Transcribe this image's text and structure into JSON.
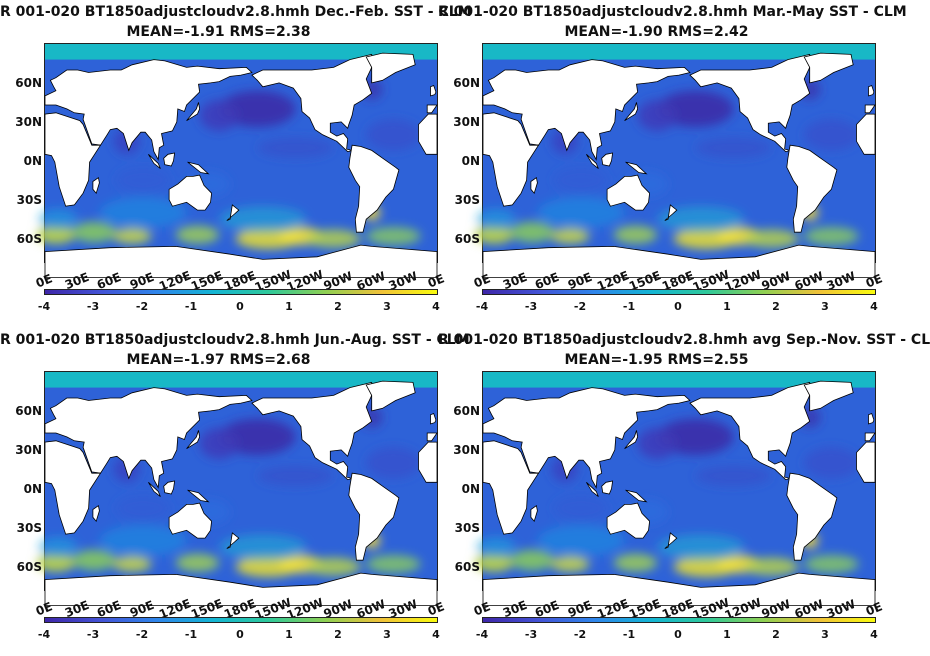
{
  "panels": [
    {
      "title_line1": "R 001-020 BT1850adjustcloudv2.8.hmh  Dec.-Feb. SST - CLM",
      "title_line2": "MEAN=-1.91   RMS=2.38"
    },
    {
      "title_line1": "R 001-020 BT1850adjustcloudv2.8.hmh  Mar.-May SST - CLM",
      "title_line2": "MEAN=-1.90   RMS=2.42"
    },
    {
      "title_line1": "R 001-020 BT1850adjustcloudv2.8.hmh  Jun.-Aug. SST - CLM",
      "title_line2": "MEAN=-1.97   RMS=2.68"
    },
    {
      "title_line1": "R 001-020 BT1850adjustcloudv2.8.hmh avg Sep.-Nov. SST - CL",
      "title_line2": "MEAN=-1.95   RMS=2.55"
    }
  ],
  "axes": {
    "y_ticks": [
      "60N",
      "30N",
      "0N",
      "30S",
      "60S"
    ],
    "x_ticks": [
      "0E",
      "30E",
      "60E",
      "90E",
      "120E",
      "150E",
      "180E",
      "150W",
      "120W",
      "90W",
      "60W",
      "30W",
      "0E"
    ],
    "colorbar_ticks": [
      "-4",
      "-3",
      "-2",
      "-1",
      "0",
      "1",
      "2",
      "3",
      "4"
    ]
  },
  "chart_data": [
    {
      "type": "heatmap",
      "title": "R 001-020 BT1850adjustcloudv2.8.hmh  Dec.-Feb. SST - CLM",
      "subtitle": "MEAN=-1.91   RMS=2.38",
      "mean": -1.91,
      "rms": 2.38,
      "clim": [
        -4,
        4
      ],
      "xlim": [
        0,
        360
      ],
      "ylim": [
        -78,
        90
      ],
      "colormap": "parula"
    },
    {
      "type": "heatmap",
      "title": "R 001-020 BT1850adjustcloudv2.8.hmh  Mar.-May SST - CLM",
      "subtitle": "MEAN=-1.90   RMS=2.42",
      "mean": -1.9,
      "rms": 2.42,
      "clim": [
        -4,
        4
      ],
      "xlim": [
        0,
        360
      ],
      "ylim": [
        -78,
        90
      ],
      "colormap": "parula"
    },
    {
      "type": "heatmap",
      "title": "R 001-020 BT1850adjustcloudv2.8.hmh  Jun.-Aug. SST - CLM",
      "subtitle": "MEAN=-1.97   RMS=2.68",
      "mean": -1.97,
      "rms": 2.68,
      "clim": [
        -4,
        4
      ],
      "xlim": [
        0,
        360
      ],
      "ylim": [
        -78,
        90
      ],
      "colormap": "parula"
    },
    {
      "type": "heatmap",
      "title": "R 001-020 BT1850adjustcloudv2.8.hmh avg Sep.-Nov. SST - CL",
      "subtitle": "MEAN=-1.95   RMS=2.55",
      "mean": -1.95,
      "rms": 2.55,
      "clim": [
        -4,
        4
      ],
      "xlim": [
        0,
        360
      ],
      "ylim": [
        -78,
        90
      ],
      "colormap": "parula"
    }
  ],
  "colors": {
    "land": "#ffffff",
    "ocean_base": "#2e62d8",
    "arctic": "#18b8c6",
    "southern_band": "#c4d44c",
    "hot_anomaly": "#f6e43a",
    "cold_anomaly": "#3a2fa8"
  }
}
